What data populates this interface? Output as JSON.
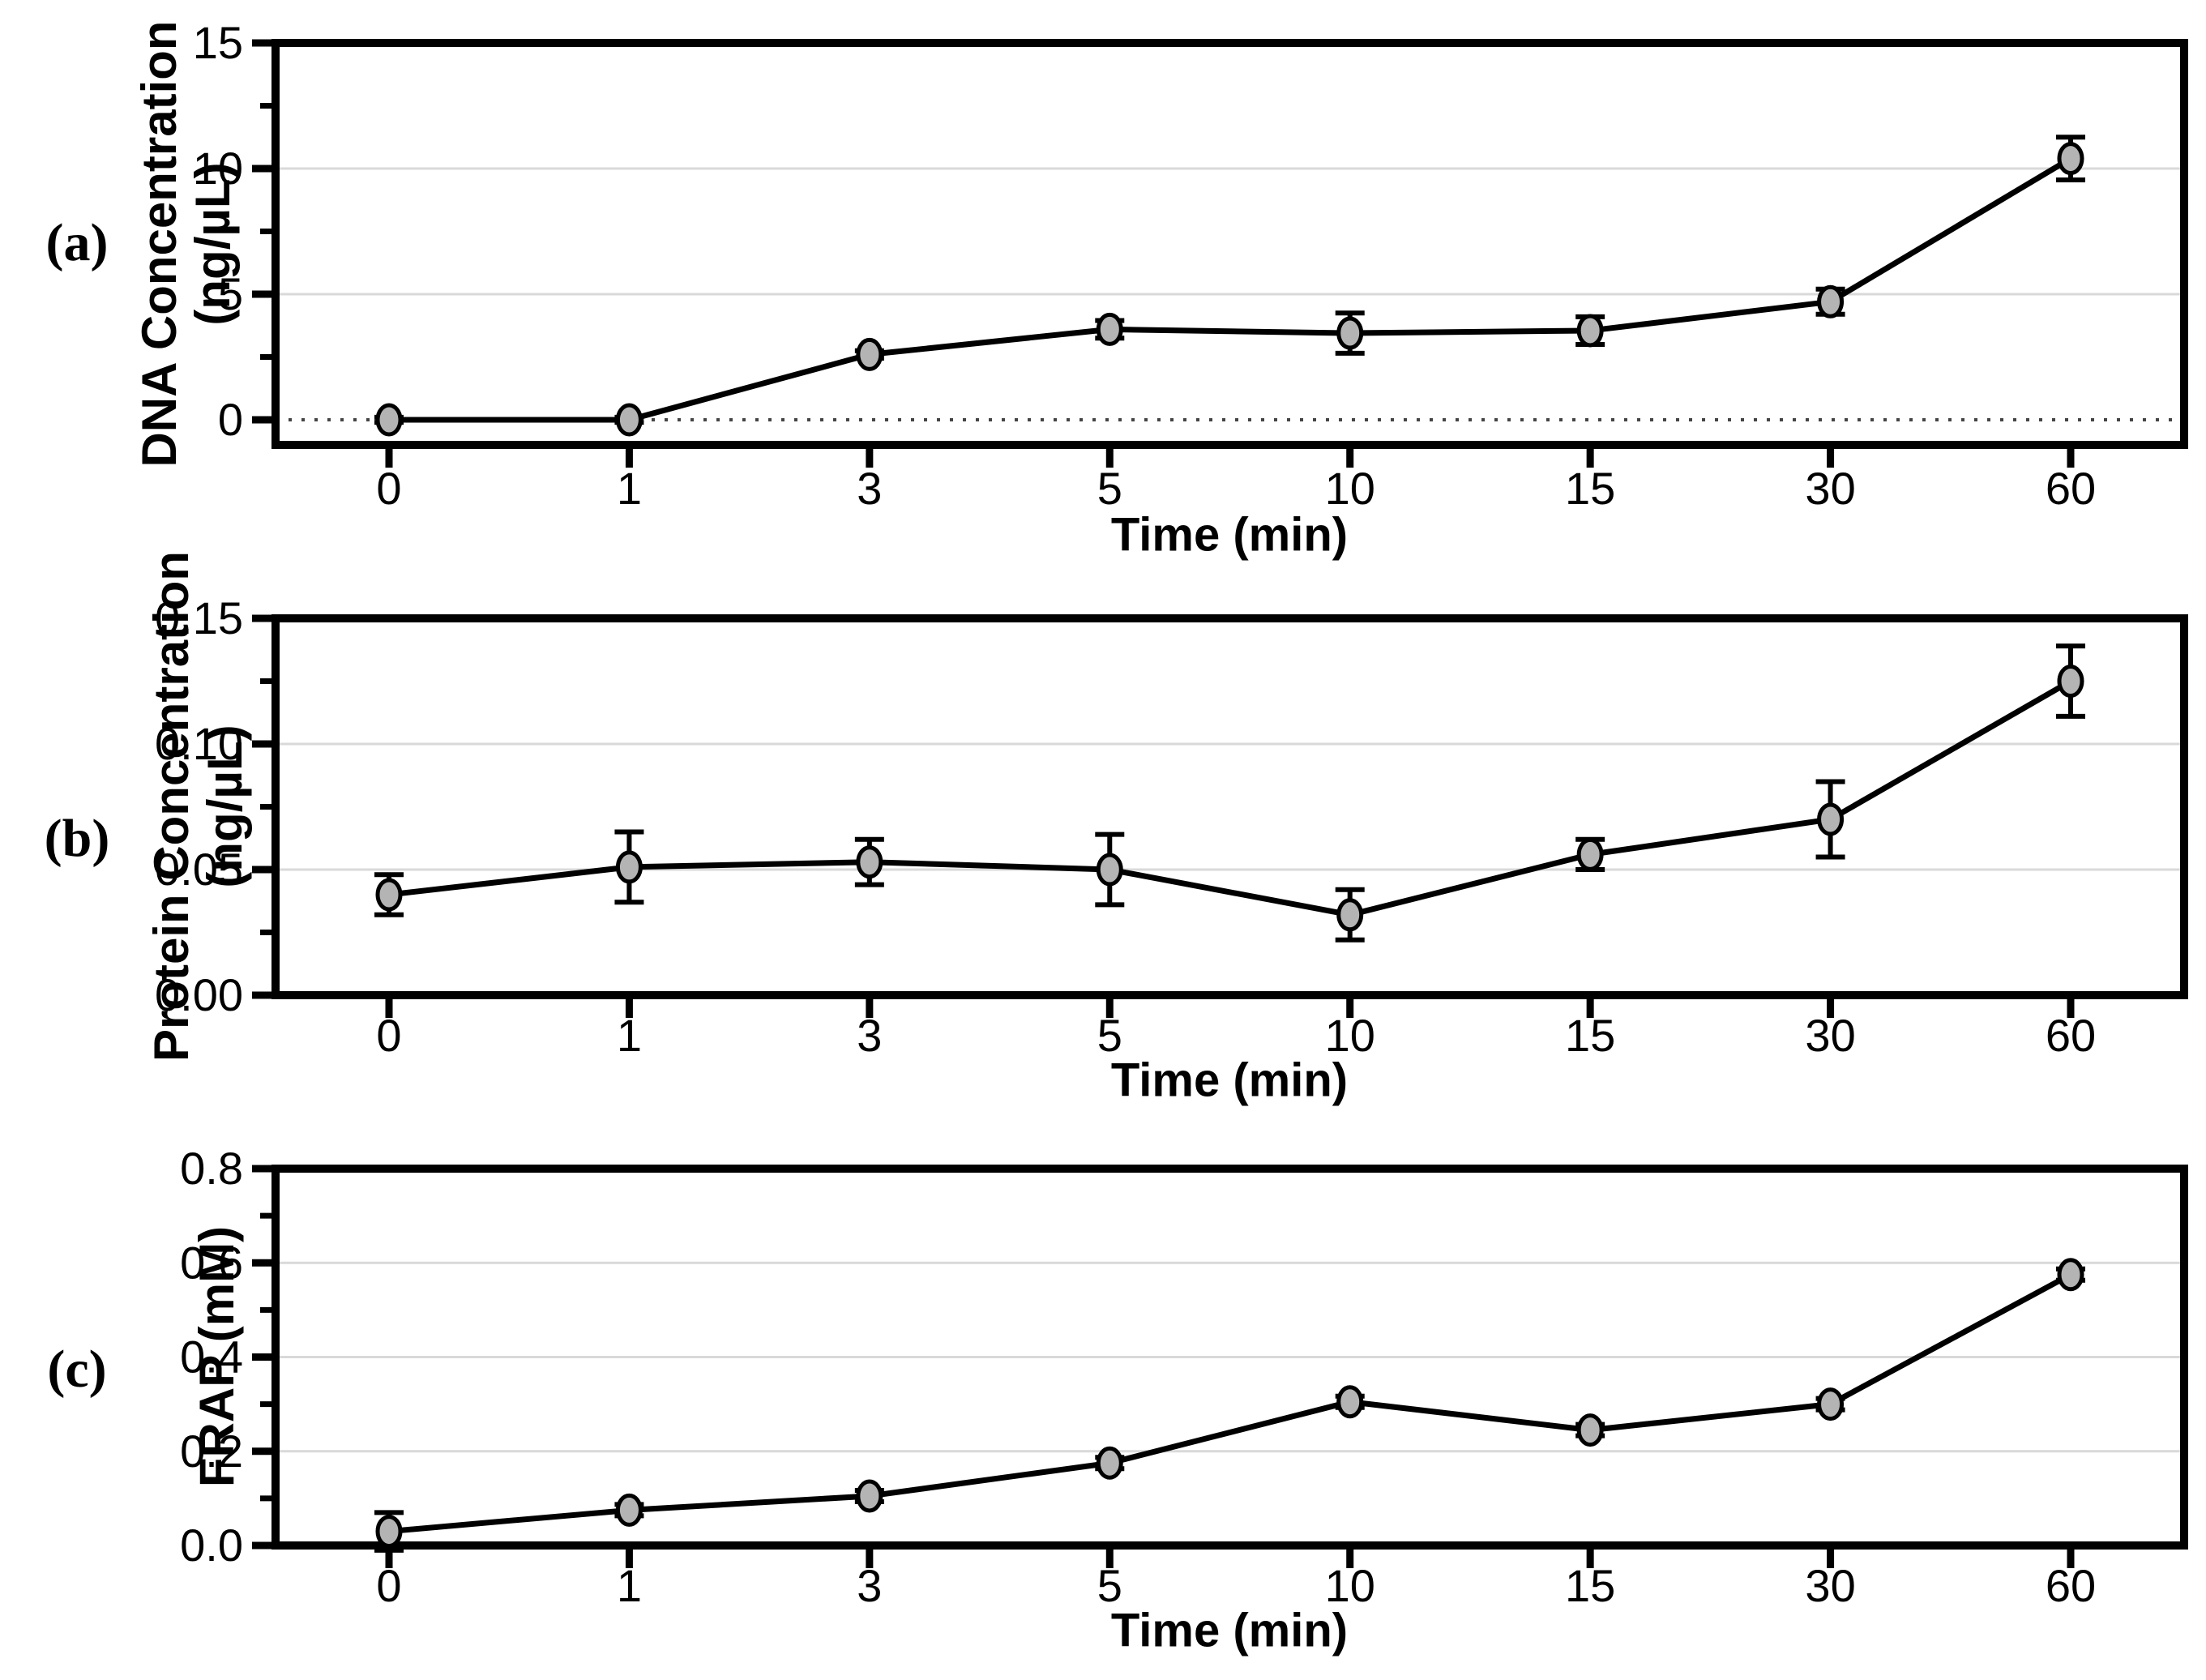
{
  "figure": {
    "background": "#ffffff",
    "line_color": "#000000",
    "marker_fill": "#b4b4b4",
    "marker_stroke": "#000000",
    "gridline_color": "#d9d9d9",
    "zero_dotted_color": "#444444"
  },
  "chart_data": [
    {
      "type": "line",
      "panel_label": "(a)",
      "ylabel": "DNA Concentration (ng/µL)",
      "ylabel_lines": [
        "DNA Concentration",
        "(ng/µL)"
      ],
      "xlabel": "Time (min)",
      "categories": [
        "0",
        "1",
        "3",
        "5",
        "10",
        "15",
        "30",
        "60"
      ],
      "values": [
        0,
        0,
        2.6,
        3.6,
        3.45,
        3.55,
        4.7,
        10.4
      ],
      "errors": [
        0.1,
        0.1,
        0.15,
        0.35,
        0.8,
        0.55,
        0.5,
        0.85
      ],
      "ylim": [
        -1,
        15
      ],
      "ytick_values": [
        0,
        5,
        10,
        15
      ],
      "ytick_labels": [
        "0",
        "5",
        "10",
        "15"
      ],
      "minor_ytick_values": [
        2.5,
        7.5,
        12.5
      ],
      "gridline_values": [
        5,
        10
      ],
      "zero_line_dotted": true,
      "legend": null,
      "grid": "horizontal-major"
    },
    {
      "type": "line",
      "panel_label": "(b)",
      "ylabel": "Protein Concentration (ng/µL)",
      "ylabel_lines": [
        "Protein Concentration",
        "(ng/µL)"
      ],
      "xlabel": "Time (min)",
      "categories": [
        "0",
        "1",
        "3",
        "5",
        "10",
        "15",
        "30",
        "60"
      ],
      "values": [
        0.04,
        0.051,
        0.053,
        0.05,
        0.032,
        0.056,
        0.07,
        0.125
      ],
      "errors": [
        0.008,
        0.014,
        0.009,
        0.014,
        0.01,
        0.006,
        0.015,
        0.014
      ],
      "ylim": [
        0,
        0.15
      ],
      "ytick_values": [
        0,
        0.05,
        0.1,
        0.15
      ],
      "ytick_labels": [
        "0.00",
        "0.05",
        "0.10",
        "0.15"
      ],
      "minor_ytick_values": [
        0.025,
        0.075,
        0.125
      ],
      "gridline_values": [
        0.05,
        0.1
      ],
      "zero_line_dotted": false,
      "legend": null,
      "grid": "horizontal-major"
    },
    {
      "type": "line",
      "panel_label": "(c)",
      "ylabel": "FRAP (mM)",
      "ylabel_lines": [
        "FRAP (mM)"
      ],
      "xlabel": "Time (min)",
      "categories": [
        "0",
        "1",
        "3",
        "5",
        "10",
        "15",
        "30",
        "60"
      ],
      "values": [
        0.03,
        0.075,
        0.105,
        0.175,
        0.305,
        0.245,
        0.3,
        0.575
      ],
      "errors": [
        0.04,
        0.012,
        0.012,
        0.012,
        0.012,
        0.012,
        0.012,
        0.012
      ],
      "ylim": [
        0,
        0.8
      ],
      "ytick_values": [
        0,
        0.2,
        0.4,
        0.6,
        0.8
      ],
      "ytick_labels": [
        "0.0",
        "0.2",
        "0.4",
        "0.6",
        "0.8"
      ],
      "minor_ytick_values": [
        0.1,
        0.3,
        0.5,
        0.7
      ],
      "gridline_values": [
        0.2,
        0.4,
        0.6
      ],
      "zero_line_dotted": false,
      "legend": null,
      "grid": "horizontal-major"
    }
  ]
}
